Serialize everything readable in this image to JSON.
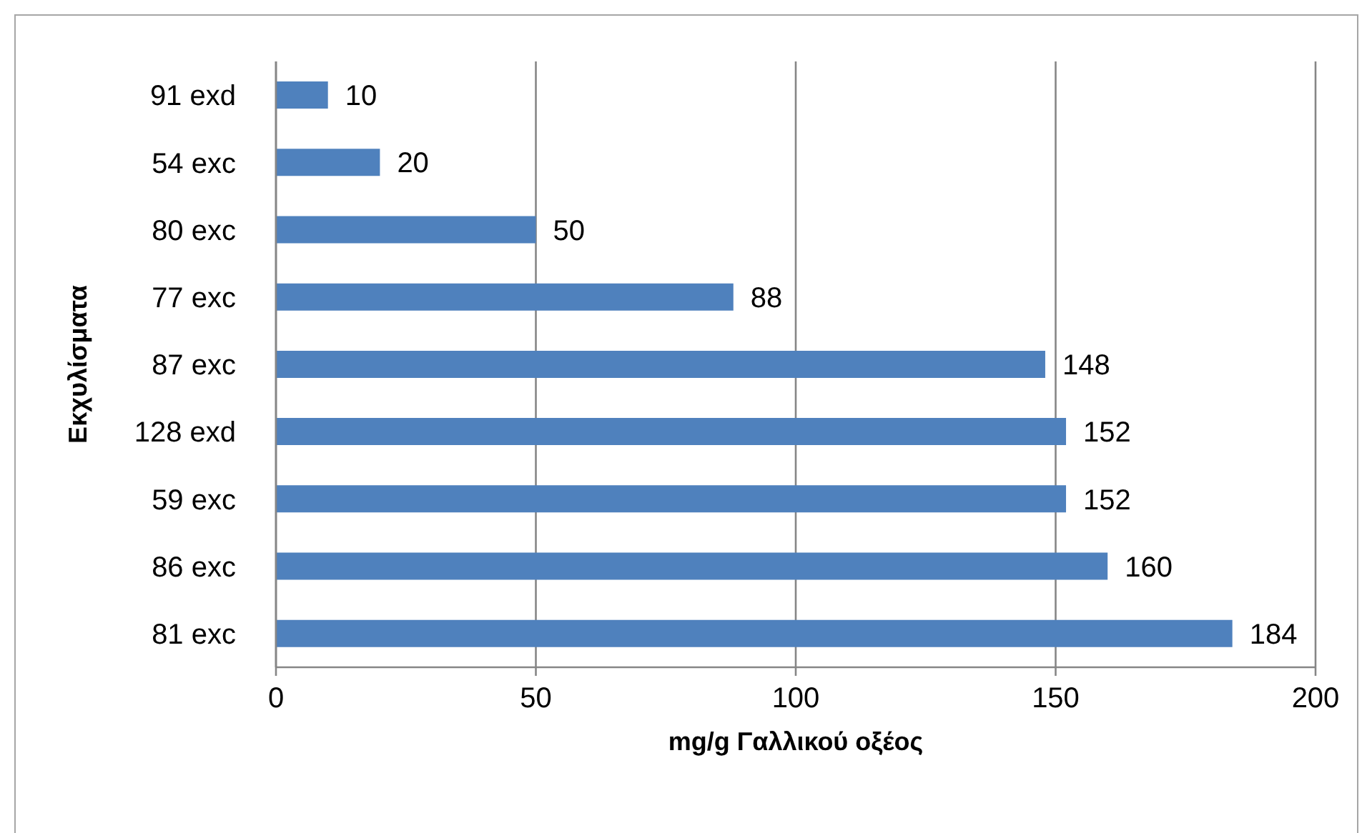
{
  "chart_data": {
    "type": "bar",
    "orientation": "horizontal",
    "categories": [
      "91 exd",
      "54 exc",
      "80 exc",
      "77 exc",
      "87 exc",
      "128 exd",
      "59 exc",
      "86 exc",
      "81 exc"
    ],
    "values": [
      10,
      20,
      50,
      88,
      148,
      152,
      152,
      160,
      184
    ],
    "color": "#4f81bd",
    "xlabel": "mg/g Γαλλικού οξέος",
    "ylabel": "Εκχυλίσματα",
    "xlim": [
      0,
      200
    ],
    "xticks": [
      0,
      50,
      100,
      150,
      200
    ],
    "grid": "x",
    "data_labels": true
  }
}
